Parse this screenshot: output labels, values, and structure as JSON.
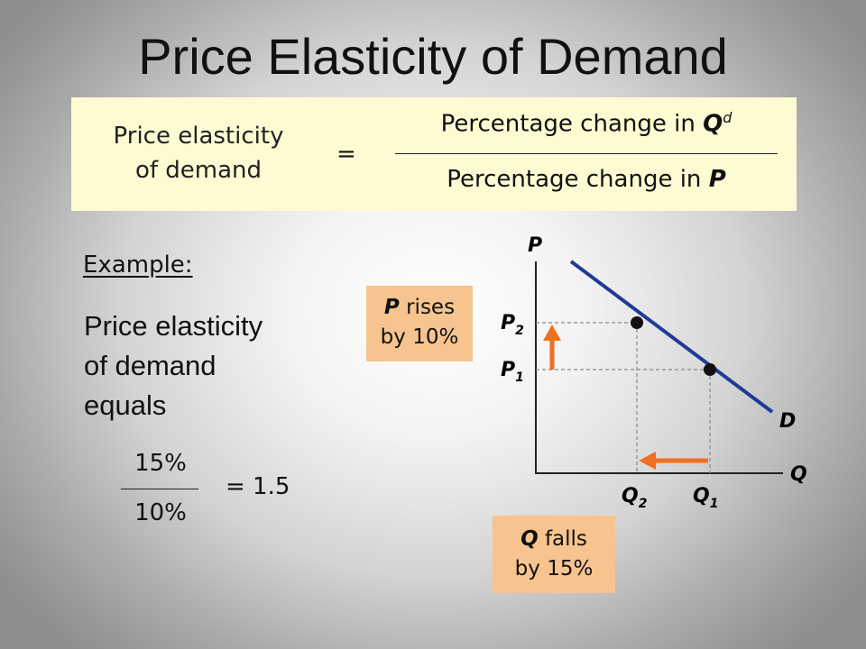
{
  "title": "Price Elasticity of Demand",
  "formula": {
    "lhs_line1": "Price elasticity",
    "lhs_line2": "of demand",
    "equals": "=",
    "numerator_text": "Percentage change in ",
    "numerator_symbol": "Q",
    "numerator_superscript": "d",
    "denominator_text": "Percentage change in ",
    "denominator_symbol": "P"
  },
  "example": {
    "label": "Example:",
    "line1": "Price elasticity",
    "line2": "of demand",
    "line3": "equals",
    "numerator": "15%",
    "denominator": "10%",
    "result": "=  1.5"
  },
  "notes": {
    "price_symbol": "P",
    "price_line1_rest": " rises",
    "price_line2": "by 10%",
    "quantity_symbol": "Q",
    "quantity_line1_rest": " falls",
    "quantity_line2": "by 15%"
  },
  "graph": {
    "y_axis_label": "P",
    "x_axis_label": "Q",
    "curve_label": "D",
    "p2_label": "P",
    "p2_sub": "2",
    "p1_label": "P",
    "p1_sub": "1",
    "q2_label": "Q",
    "q2_sub": "2",
    "q1_label": "Q",
    "q1_sub": "1",
    "colors": {
      "demand_curve": "#1e3c96",
      "arrows": "#f07020",
      "note_fill": "#f7c48f",
      "formula_fill": "#fdfbd2"
    }
  }
}
